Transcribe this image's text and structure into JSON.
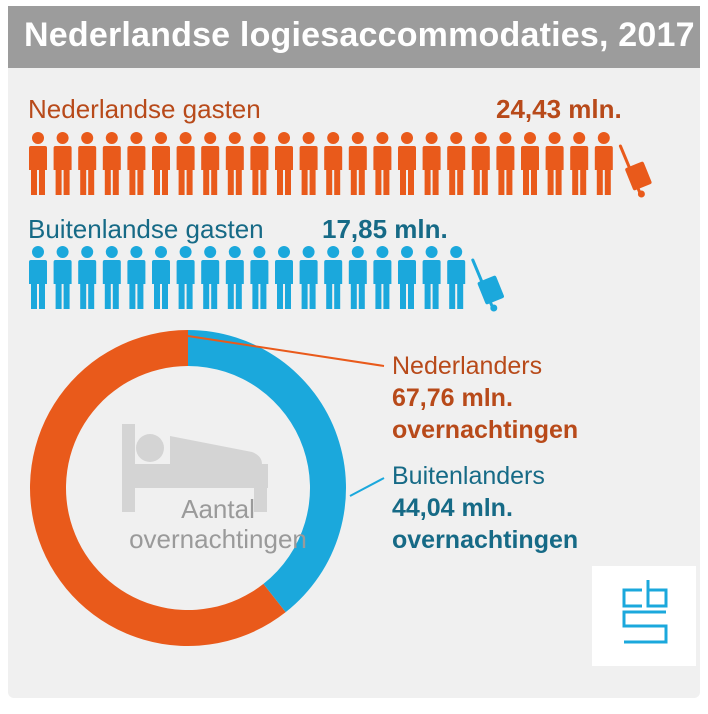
{
  "title": "Nederlandse logiesaccommodaties, 2017",
  "colors": {
    "dutch": "#e95a1b",
    "dutch_text": "#b84a1a",
    "foreign": "#1ba8dc",
    "foreign_text": "#166a86",
    "header": "#9c9c9c",
    "panel": "#f0f0f0",
    "icon_gray": "#d4d4d4"
  },
  "guests": {
    "dutch": {
      "label": "Nederlandse gasten",
      "value": "24,43 mln."
    },
    "foreign": {
      "label": "Buitenlandse gasten",
      "value": "17,85 mln."
    }
  },
  "donut": {
    "center_label_line1": "Aantal",
    "center_label_line2": "overnachtingen",
    "dutch": {
      "name": "Nederlanders",
      "value": "67,76 mln.",
      "unit": "overnachtingen"
    },
    "foreign": {
      "name": "Buitenlanders",
      "value": "44,04 mln.",
      "unit": "overnachtingen"
    }
  },
  "icons": {
    "person": "person-icon",
    "luggage": "luggage-trolley-icon",
    "bed": "bed-icon",
    "logo": "cbs-logo"
  },
  "chart_data": [
    {
      "type": "bar",
      "categories": [
        "Nederlandse gasten",
        "Buitenlandse gasten"
      ],
      "values": [
        24.43,
        17.85
      ]
    },
    {
      "type": "pie",
      "categories": [
        "Nederlanders",
        "Buitenlanders"
      ],
      "values": [
        67.76,
        44.04
      ]
    }
  ]
}
